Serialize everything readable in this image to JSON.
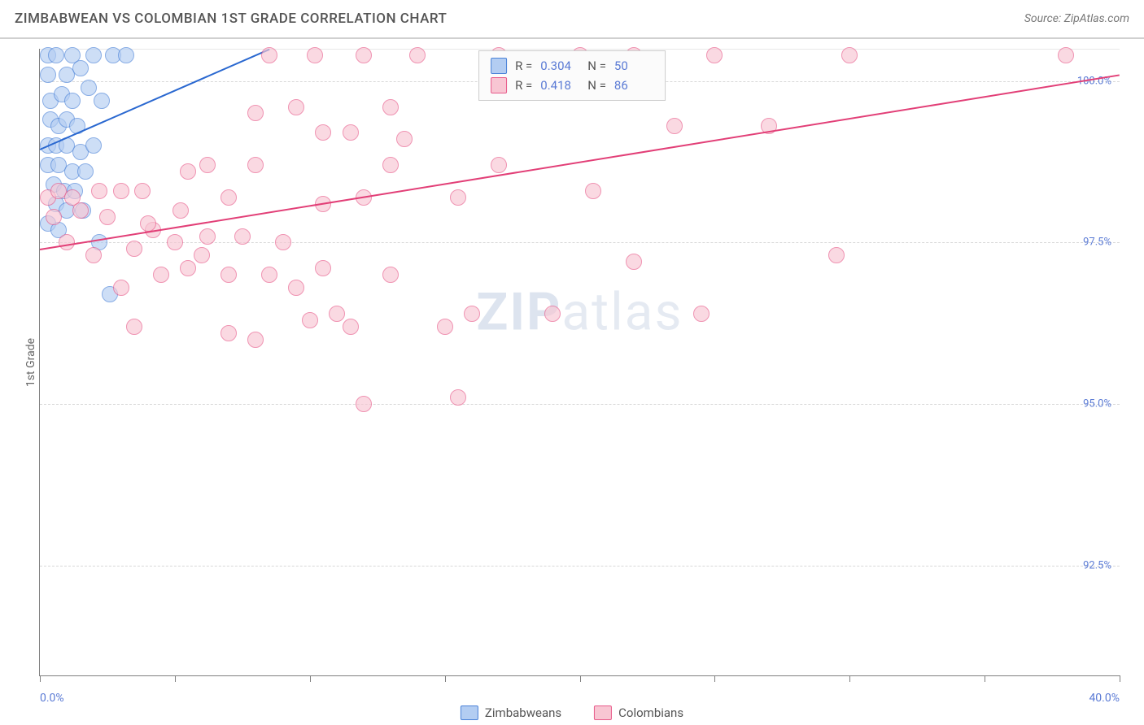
{
  "title": "ZIMBABWEAN VS COLOMBIAN 1ST GRADE CORRELATION CHART",
  "source_text": "Source: ZipAtlas.com",
  "y_axis_title": "1st Grade",
  "watermark": {
    "bold": "ZIP",
    "light": "atlas"
  },
  "chart": {
    "type": "scatter",
    "xlim": [
      0,
      40
    ],
    "ylim": [
      90.8,
      100.5
    ],
    "x_ticks": [
      0,
      5,
      10,
      15,
      20,
      25,
      30,
      35,
      40
    ],
    "x_tick_labels_shown": {
      "0": "0.0%",
      "40": "40.0%"
    },
    "y_ticks": [
      92.5,
      95.0,
      97.5,
      100.0
    ],
    "y_tick_labels": [
      "92.5%",
      "95.0%",
      "97.5%",
      "100.0%"
    ],
    "background_color": "#ffffff",
    "grid_color": "#d8d8d8",
    "axis_color": "#808080",
    "label_color": "#5b7bd5",
    "marker_radius": 10,
    "series": [
      {
        "name": "Zimbabweans",
        "fill": "#b3cdf2",
        "stroke": "#4a82d8",
        "trend_color": "#2a68d0",
        "trend": {
          "x1": 0,
          "y1": 98.95,
          "x2": 8.5,
          "y2": 100.5
        },
        "stats": {
          "R": "0.304",
          "N": "50"
        },
        "points": [
          [
            0.3,
            100.4
          ],
          [
            0.6,
            100.4
          ],
          [
            1.2,
            100.4
          ],
          [
            2.0,
            100.4
          ],
          [
            2.7,
            100.4
          ],
          [
            3.2,
            100.4
          ],
          [
            0.3,
            100.1
          ],
          [
            1.0,
            100.1
          ],
          [
            1.5,
            100.2
          ],
          [
            0.4,
            99.7
          ],
          [
            0.8,
            99.8
          ],
          [
            1.2,
            99.7
          ],
          [
            1.8,
            99.9
          ],
          [
            2.3,
            99.7
          ],
          [
            0.4,
            99.4
          ],
          [
            0.7,
            99.3
          ],
          [
            1.0,
            99.4
          ],
          [
            1.4,
            99.3
          ],
          [
            0.3,
            99.0
          ],
          [
            0.6,
            99.0
          ],
          [
            1.0,
            99.0
          ],
          [
            1.5,
            98.9
          ],
          [
            2.0,
            99.0
          ],
          [
            0.3,
            98.7
          ],
          [
            0.7,
            98.7
          ],
          [
            1.2,
            98.6
          ],
          [
            1.7,
            98.6
          ],
          [
            0.5,
            98.4
          ],
          [
            0.9,
            98.3
          ],
          [
            1.3,
            98.3
          ],
          [
            0.6,
            98.1
          ],
          [
            1.0,
            98.0
          ],
          [
            1.6,
            98.0
          ],
          [
            0.3,
            97.8
          ],
          [
            0.7,
            97.7
          ],
          [
            2.2,
            97.5
          ],
          [
            2.6,
            96.7
          ]
        ]
      },
      {
        "name": "Colombians",
        "fill": "#f8c6d3",
        "stroke": "#e85a8a",
        "trend_color": "#e23f77",
        "trend": {
          "x1": 0,
          "y1": 97.4,
          "x2": 40,
          "y2": 100.1
        },
        "stats": {
          "R": "0.418",
          "N": "86"
        },
        "points": [
          [
            0.3,
            98.2
          ],
          [
            0.7,
            98.3
          ],
          [
            1.2,
            98.2
          ],
          [
            2.2,
            98.3
          ],
          [
            3.0,
            98.3
          ],
          [
            3.8,
            98.3
          ],
          [
            0.5,
            97.9
          ],
          [
            1.5,
            98.0
          ],
          [
            2.5,
            97.9
          ],
          [
            5.5,
            98.6
          ],
          [
            6.2,
            98.7
          ],
          [
            7.0,
            98.2
          ],
          [
            8.0,
            98.7
          ],
          [
            10.5,
            98.1
          ],
          [
            12.0,
            98.2
          ],
          [
            13.0,
            98.7
          ],
          [
            13.5,
            99.1
          ],
          [
            8.5,
            100.4
          ],
          [
            10.2,
            100.4
          ],
          [
            12.0,
            100.4
          ],
          [
            14.0,
            100.4
          ],
          [
            17.0,
            100.4
          ],
          [
            20.0,
            100.4
          ],
          [
            22.0,
            100.4
          ],
          [
            25.0,
            100.4
          ],
          [
            30.0,
            100.4
          ],
          [
            38.0,
            100.4
          ],
          [
            8.0,
            99.5
          ],
          [
            9.5,
            99.6
          ],
          [
            10.5,
            99.2
          ],
          [
            11.5,
            99.2
          ],
          [
            13.0,
            99.6
          ],
          [
            15.5,
            98.2
          ],
          [
            17.0,
            98.7
          ],
          [
            20.5,
            98.3
          ],
          [
            23.5,
            99.3
          ],
          [
            27.0,
            99.3
          ],
          [
            3.0,
            96.8
          ],
          [
            3.5,
            97.4
          ],
          [
            4.2,
            97.7
          ],
          [
            5.0,
            97.5
          ],
          [
            5.5,
            97.1
          ],
          [
            6.2,
            97.6
          ],
          [
            7.0,
            97.0
          ],
          [
            7.5,
            97.6
          ],
          [
            8.5,
            97.0
          ],
          [
            9.0,
            97.5
          ],
          [
            9.5,
            96.8
          ],
          [
            10.0,
            96.3
          ],
          [
            10.5,
            97.1
          ],
          [
            11.0,
            96.4
          ],
          [
            11.5,
            96.2
          ],
          [
            13.0,
            97.0
          ],
          [
            16.0,
            96.4
          ],
          [
            15.5,
            95.1
          ],
          [
            12.0,
            95.0
          ],
          [
            7.0,
            96.1
          ],
          [
            8.0,
            96.0
          ],
          [
            15.0,
            96.2
          ],
          [
            19.0,
            96.4
          ],
          [
            22.0,
            97.2
          ],
          [
            24.5,
            96.4
          ],
          [
            29.5,
            97.3
          ],
          [
            3.5,
            96.2
          ],
          [
            4.0,
            97.8
          ],
          [
            4.5,
            97.0
          ],
          [
            5.2,
            98.0
          ],
          [
            6.0,
            97.3
          ],
          [
            2.0,
            97.3
          ],
          [
            1.0,
            97.5
          ]
        ]
      }
    ]
  },
  "stats_box": {
    "R_label": "R =",
    "N_label": "N ="
  },
  "legend": [
    {
      "label": "Zimbabweans",
      "fill": "#b3cdf2",
      "stroke": "#4a82d8"
    },
    {
      "label": "Colombians",
      "fill": "#f8c6d3",
      "stroke": "#e85a8a"
    }
  ]
}
